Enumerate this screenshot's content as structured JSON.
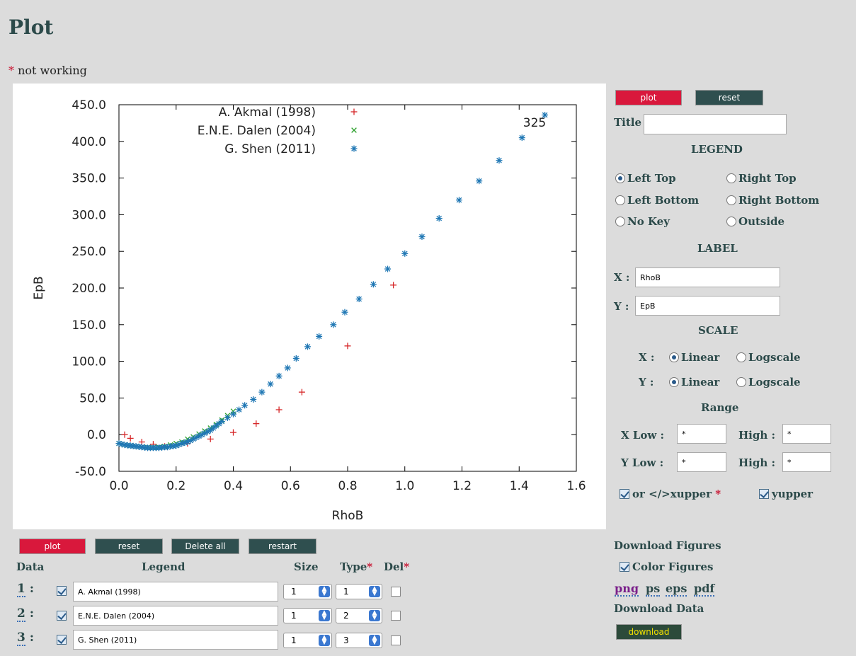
{
  "page": {
    "title": "Plot",
    "note_star": "*",
    "note_text": " not working"
  },
  "chart_data": {
    "type": "scatter",
    "xlabel": "RhoB",
    "ylabel": "EpB",
    "xlim": [
      0.0,
      1.6
    ],
    "ylim": [
      -50.0,
      450.0
    ],
    "x_ticks": [
      "0.0",
      "0.2",
      "0.4",
      "0.6",
      "0.8",
      "1.0",
      "1.2",
      "1.4",
      "1.6"
    ],
    "y_ticks": [
      "-50.0",
      "0.0",
      "50.0",
      "100.0",
      "150.0",
      "200.0",
      "250.0",
      "300.0",
      "350.0",
      "400.0",
      "450.0"
    ],
    "annotation": "325",
    "legend_position": "top-center",
    "series": [
      {
        "name": "A. Akmal (1998)",
        "symbol": "+",
        "color": "#d62728",
        "x": [
          0.02,
          0.04,
          0.08,
          0.12,
          0.16,
          0.24,
          0.32,
          0.4,
          0.48,
          0.56,
          0.64,
          0.8,
          0.96
        ],
        "y": [
          0,
          -5,
          -10,
          -13,
          -16,
          -12,
          -6,
          3,
          15,
          34,
          58,
          121,
          204
        ]
      },
      {
        "name": "E.N.E. Dalen (2004)",
        "symbol": "x",
        "color": "#2ca02c",
        "x": [
          0.0,
          0.02,
          0.04,
          0.06,
          0.08,
          0.1,
          0.12,
          0.14,
          0.16,
          0.18,
          0.2,
          0.22,
          0.24,
          0.26,
          0.28,
          0.3,
          0.32,
          0.34,
          0.36,
          0.38,
          0.4
        ],
        "y": [
          -12,
          -14,
          -15,
          -16,
          -17,
          -17.5,
          -17.5,
          -17,
          -16,
          -14,
          -12,
          -10,
          -6,
          -3,
          1,
          5,
          9,
          14,
          20,
          26,
          32
        ]
      },
      {
        "name": "G. Shen (2011)",
        "symbol": "*",
        "color": "#1f77b4",
        "x": [
          0.0,
          0.01,
          0.02,
          0.03,
          0.04,
          0.05,
          0.06,
          0.07,
          0.08,
          0.09,
          0.1,
          0.11,
          0.12,
          0.13,
          0.14,
          0.15,
          0.16,
          0.17,
          0.18,
          0.19,
          0.2,
          0.21,
          0.22,
          0.23,
          0.24,
          0.25,
          0.26,
          0.27,
          0.28,
          0.29,
          0.3,
          0.31,
          0.32,
          0.33,
          0.34,
          0.35,
          0.36,
          0.38,
          0.4,
          0.42,
          0.44,
          0.47,
          0.5,
          0.53,
          0.56,
          0.59,
          0.62,
          0.66,
          0.7,
          0.75,
          0.79,
          0.84,
          0.89,
          0.94,
          1.0,
          1.06,
          1.12,
          1.19,
          1.26,
          1.33,
          1.41,
          1.49
        ],
        "y": [
          -12,
          -13,
          -14,
          -14.5,
          -15,
          -15.5,
          -16,
          -16.5,
          -17,
          -17.5,
          -18,
          -18,
          -18,
          -18,
          -18,
          -17.5,
          -17,
          -17,
          -16,
          -15.5,
          -15,
          -13.5,
          -12,
          -11,
          -10,
          -8,
          -6,
          -4,
          -2,
          0,
          2,
          4,
          6,
          9,
          12,
          15,
          18,
          23,
          28,
          34,
          40,
          48,
          58,
          69,
          80,
          91,
          104,
          120,
          134,
          150,
          167,
          185,
          205,
          226,
          247,
          270,
          295,
          320,
          346,
          374,
          405,
          436
        ]
      }
    ]
  },
  "controls": {
    "plot_label": "plot",
    "reset_label": "reset",
    "title_label": "Title",
    "title_value": "",
    "legend_heading": "LEGEND",
    "legend_options": [
      "Left Top",
      "Right Top",
      "Left Bottom",
      "Right Bottom",
      "No Key",
      "Outside"
    ],
    "legend_selected": "Left Top",
    "label_heading": "LABEL",
    "x_label_prefix": "X :",
    "y_label_prefix": "Y :",
    "x_label_value": "RhoB",
    "y_label_value": "EpB",
    "scale_heading": "SCALE",
    "scale_x_prefix": "X :",
    "scale_y_prefix": "Y :",
    "scale_linear": "Linear",
    "scale_log": "Logscale",
    "range_heading": "Range",
    "x_low_label": "X Low :",
    "y_low_label": "Y Low :",
    "high_label": "High :",
    "x_low": "*",
    "x_high": "*",
    "y_low": "*",
    "y_high": "*",
    "xupper_label": "or </>xupper",
    "xupper_star": "*",
    "yupper_label": "yupper"
  },
  "data_table": {
    "buttons": {
      "plot": "plot",
      "reset": "reset",
      "delete_all": "Delete all",
      "restart": "restart"
    },
    "headers": {
      "data": "Data",
      "legend": "Legend",
      "size": "Size",
      "type": "Type",
      "type_star": "*",
      "del": "Del",
      "del_star": "*"
    },
    "rows": [
      {
        "num": "1",
        "sep": ":",
        "legend": "A. Akmal (1998)",
        "size": "1",
        "type": "1"
      },
      {
        "num": "2",
        "sep": ":",
        "legend": "E.N.E. Dalen (2004)",
        "size": "1",
        "type": "2"
      },
      {
        "num": "3",
        "sep": ":",
        "legend": "G. Shen (2011)",
        "size": "1",
        "type": "3"
      }
    ]
  },
  "downloads": {
    "figures_heading": "Download Figures",
    "color_figures": "Color Figures",
    "formats": [
      "png",
      "ps",
      "eps",
      "pdf"
    ],
    "data_heading": "Download Data",
    "download_label": "download",
    "colors": {
      "png": "#7a1f8a",
      "ps": "#2c4a4a",
      "eps": "#2c4a4a",
      "pdf": "#2c4a4a"
    }
  }
}
